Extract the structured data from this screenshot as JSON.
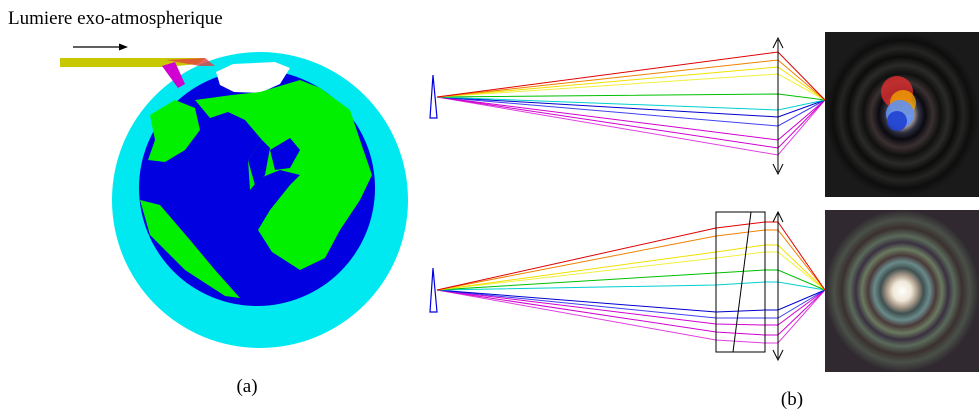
{
  "caption_light": "Lumiere exo-atmospherique",
  "label_a": "(a)",
  "label_b": "(b)"
}
